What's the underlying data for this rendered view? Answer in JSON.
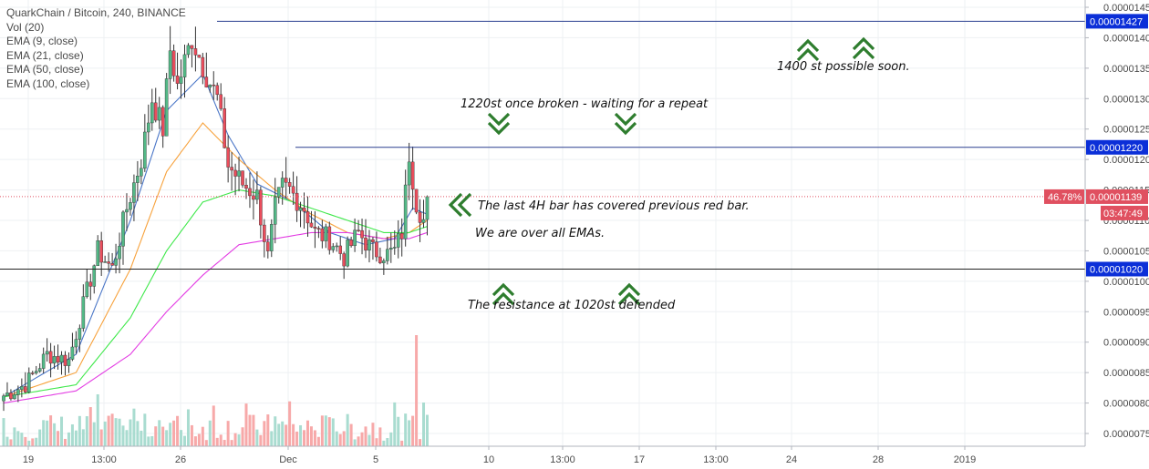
{
  "legend": {
    "title": "QuarkChain / Bitcoin, 240, BINANCE",
    "vol": "Vol (20)",
    "ema9": "EMA (9, close)",
    "ema21": "EMA (21, close)",
    "ema50": "EMA (50, close)",
    "ema100": "EMA (100, close)"
  },
  "annotations": {
    "a1400": "1400 st possible soon.",
    "a1220": "1220st once broken - waiting for a repeat",
    "last4h": "The last 4H bar has covered previous red bar.",
    "overemas": "We are over all EMAs.",
    "a1020": "The resistance at 1020st defended"
  },
  "badges": {
    "level1427": "0.00001427",
    "level1220": "0.00001220",
    "level1020": "0.00001020",
    "price": "0.00001139",
    "percent": "46.78%",
    "countdown": "03:47:49"
  },
  "colors": {
    "up": "#53b987",
    "down": "#eb4d5c",
    "vol_up": "#a9dcd0",
    "vol_down": "#f7a9a9",
    "ema9": "#4a76c7",
    "ema21": "#f7a23c",
    "ema50": "#3ee84a",
    "ema100": "#e33de3",
    "level_line": "#2a3f8f",
    "badge_blue": "#0b2fd8",
    "badge_red": "#e05060",
    "arrow_green": "#2e7d2e"
  },
  "chart_data": {
    "type": "candlestick",
    "symbol": "QuarkChain / Bitcoin",
    "interval": "240",
    "exchange": "BINANCE",
    "y_ticks": [
      "0.00001450",
      "0.00001400",
      "0.00001350",
      "0.00001300",
      "0.00001250",
      "0.00001200",
      "0.00001150",
      "0.00001100",
      "0.00001050",
      "0.00001000",
      "0.00000950",
      "0.00000900",
      "0.00000850",
      "0.00000800",
      "0.00000750"
    ],
    "x_ticks": [
      "19",
      "13:00",
      "26",
      "Dec",
      "5",
      "10",
      "13:00",
      "17",
      "13:00",
      "24",
      "28",
      "2019"
    ],
    "horizontal_levels": [
      1.427e-05,
      1.22e-05,
      1.02e-05
    ],
    "current_price": 1.139e-05,
    "close_path": [
      [
        0,
        8.12e-06
      ],
      [
        6,
        8.3e-06
      ],
      [
        12,
        8.8e-06
      ],
      [
        18,
        8.7e-06
      ],
      [
        22,
        9.6e-06
      ],
      [
        26,
        1.05e-05
      ],
      [
        30,
        1.02e-05
      ],
      [
        34,
        1.12e-05
      ],
      [
        38,
        1.2e-05
      ],
      [
        41,
        1.3e-05
      ],
      [
        44,
        1.25e-05
      ],
      [
        46,
        1.38e-05
      ],
      [
        48,
        1.32e-05
      ],
      [
        52,
        1.4e-05
      ],
      [
        56,
        1.34e-05
      ],
      [
        59,
        1.3e-05
      ],
      [
        62,
        1.19e-05
      ],
      [
        66,
        1.16e-05
      ],
      [
        70,
        1.14e-05
      ],
      [
        73,
        1.04e-05
      ],
      [
        75,
        1.12e-05
      ],
      [
        77,
        1.155e-05
      ],
      [
        79,
        1.15e-05
      ],
      [
        83,
        1.12e-05
      ],
      [
        86,
        1.08e-05
      ],
      [
        90,
        1.07e-05
      ],
      [
        94,
        1.04e-05
      ],
      [
        98,
        1.08e-05
      ],
      [
        102,
        1.05e-05
      ],
      [
        106,
        1.045e-05
      ],
      [
        108,
        1.05e-05
      ],
      [
        110,
        1.08e-05
      ],
      [
        112,
        1.21e-05
      ],
      [
        114,
        1.13e-05
      ],
      [
        116,
        1.1e-05
      ],
      [
        117,
        1.139e-05
      ]
    ],
    "ema_paths": {
      "ema9": [
        [
          0,
          8.1e-06
        ],
        [
          20,
          8.8e-06
        ],
        [
          35,
          1.1e-05
        ],
        [
          45,
          1.28e-05
        ],
        [
          55,
          1.34e-05
        ],
        [
          62,
          1.24e-05
        ],
        [
          70,
          1.16e-05
        ],
        [
          80,
          1.13e-05
        ],
        [
          90,
          1.08e-05
        ],
        [
          100,
          1.06e-05
        ],
        [
          108,
          1.07e-05
        ],
        [
          113,
          1.12e-05
        ],
        [
          117,
          1.11e-05
        ]
      ],
      "ema21": [
        [
          0,
          8.1e-06
        ],
        [
          20,
          8.5e-06
        ],
        [
          35,
          1.02e-05
        ],
        [
          45,
          1.18e-05
        ],
        [
          55,
          1.26e-05
        ],
        [
          65,
          1.2e-05
        ],
        [
          75,
          1.15e-05
        ],
        [
          85,
          1.11e-05
        ],
        [
          95,
          1.08e-05
        ],
        [
          105,
          1.07e-05
        ],
        [
          112,
          1.08e-05
        ],
        [
          117,
          1.1e-05
        ]
      ],
      "ema50": [
        [
          0,
          8.1e-06
        ],
        [
          20,
          8.3e-06
        ],
        [
          35,
          9.4e-06
        ],
        [
          45,
          1.05e-05
        ],
        [
          55,
          1.13e-05
        ],
        [
          65,
          1.15e-05
        ],
        [
          75,
          1.14e-05
        ],
        [
          85,
          1.12e-05
        ],
        [
          95,
          1.1e-05
        ],
        [
          105,
          1.08e-05
        ],
        [
          112,
          1.08e-05
        ],
        [
          117,
          1.09e-05
        ]
      ],
      "ema100": [
        [
          0,
          8e-06
        ],
        [
          20,
          8.2e-06
        ],
        [
          35,
          8.8e-06
        ],
        [
          45,
          9.5e-06
        ],
        [
          55,
          1.01e-05
        ],
        [
          65,
          1.06e-05
        ],
        [
          75,
          1.07e-05
        ],
        [
          85,
          1.08e-05
        ],
        [
          95,
          1.08e-05
        ],
        [
          105,
          1.07e-05
        ],
        [
          112,
          1.07e-05
        ],
        [
          117,
          1.08e-05
        ]
      ]
    },
    "volume_peak_bar": 114
  }
}
